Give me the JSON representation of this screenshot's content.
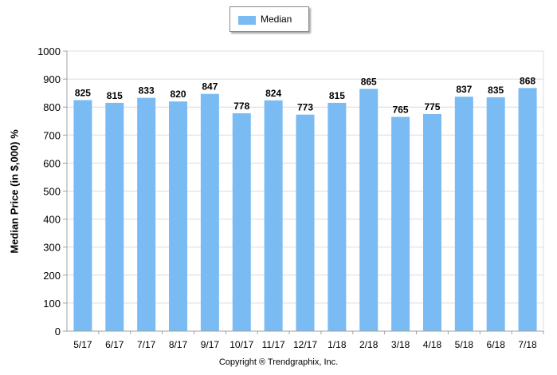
{
  "chart_data": {
    "type": "bar",
    "categories": [
      "5/17",
      "6/17",
      "7/17",
      "8/17",
      "9/17",
      "10/17",
      "11/17",
      "12/17",
      "1/18",
      "2/18",
      "3/18",
      "4/18",
      "5/18",
      "6/18",
      "7/18"
    ],
    "series": [
      {
        "name": "Median",
        "values": [
          825,
          815,
          833,
          820,
          847,
          778,
          824,
          773,
          815,
          865,
          765,
          775,
          837,
          835,
          868
        ]
      }
    ],
    "ylabel": "Median Price (in $,000) %",
    "ylim": [
      0,
      1000
    ],
    "yticks": [
      0,
      100,
      200,
      300,
      400,
      500,
      600,
      700,
      800,
      900,
      1000
    ],
    "grid": true,
    "legend_position": "top-center",
    "bar_color": "#79bbf2",
    "grid_color": "#dcdcdc"
  },
  "footer": {
    "copyright": "Copyright ® Trendgraphix, Inc."
  }
}
